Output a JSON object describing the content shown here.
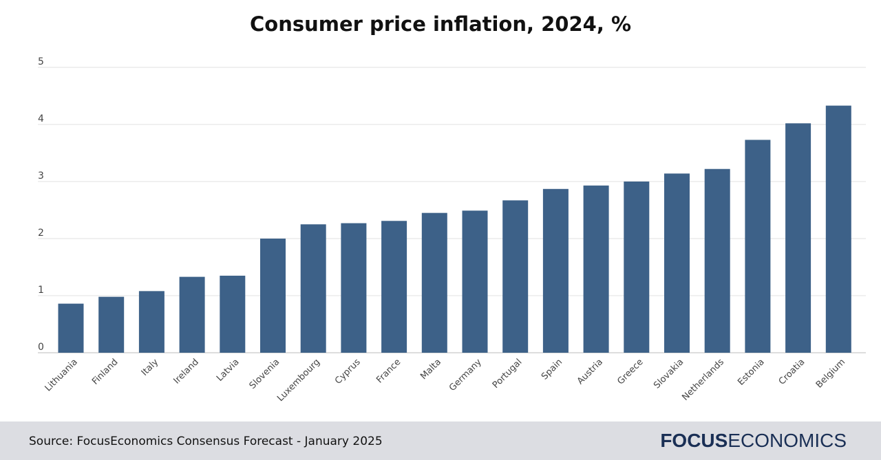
{
  "chart_data": {
    "type": "bar",
    "title": "Consumer price inflation, 2024, %",
    "categories": [
      "Lithuania",
      "Finland",
      "Italy",
      "Ireland",
      "Latvia",
      "Slovenia",
      "Luxembourg",
      "Cyprus",
      "France",
      "Malta",
      "Germany",
      "Portugal",
      "Spain",
      "Austria",
      "Greece",
      "Slovakia",
      "Netherlands",
      "Estonia",
      "Croatia",
      "Belgium"
    ],
    "values": [
      0.86,
      0.98,
      1.08,
      1.33,
      1.35,
      2.0,
      2.25,
      2.27,
      2.31,
      2.45,
      2.49,
      2.67,
      2.87,
      2.93,
      3.0,
      3.14,
      3.22,
      3.73,
      4.02,
      4.33
    ],
    "ylim": [
      0,
      5
    ],
    "yticks": [
      "0",
      "1",
      "2",
      "3",
      "4",
      "5"
    ],
    "grid": true,
    "bar_color": "#3d6188"
  },
  "footer": {
    "source": "Source: FocusEconomics Consensus Forecast - January 2025",
    "logo_bold": "FOCUS",
    "logo_light": "ECONOMICS"
  }
}
